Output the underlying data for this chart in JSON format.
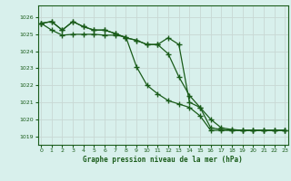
{
  "title": "Graphe pression niveau de la mer (hPa)",
  "background_color": "#d8f0ec",
  "grid_color": "#c8d8d4",
  "line_color": "#1a5c1a",
  "ylim": [
    1018.5,
    1026.7
  ],
  "xlim": [
    -0.3,
    23.3
  ],
  "yticks": [
    1019,
    1020,
    1021,
    1022,
    1023,
    1024,
    1025,
    1026
  ],
  "xticks": [
    0,
    1,
    2,
    3,
    4,
    5,
    6,
    7,
    8,
    9,
    10,
    11,
    12,
    13,
    14,
    15,
    16,
    17,
    18,
    19,
    20,
    21,
    22,
    23
  ],
  "line1": [
    1025.65,
    1025.75,
    1025.25,
    1025.75,
    1025.45,
    1025.25,
    1025.25,
    1025.05,
    1024.8,
    1024.65,
    1024.4,
    1024.4,
    1024.8,
    1024.4,
    1021.0,
    1020.7,
    1020.0,
    1019.5,
    1019.4,
    1019.35,
    1019.35,
    1019.35,
    1019.35,
    1019.35
  ],
  "line2": [
    1025.65,
    1025.75,
    1025.25,
    1025.75,
    1025.45,
    1025.25,
    1025.25,
    1025.05,
    1024.8,
    1024.65,
    1024.4,
    1024.4,
    1023.85,
    1022.5,
    1021.4,
    1020.7,
    1019.5,
    1019.4,
    1019.35,
    1019.35,
    1019.35,
    1019.35,
    1019.35,
    1019.35
  ],
  "line3": [
    1025.65,
    1025.25,
    1024.95,
    1025.0,
    1025.0,
    1025.0,
    1024.95,
    1024.95,
    1024.85,
    1023.1,
    1022.0,
    1021.5,
    1021.1,
    1020.9,
    1020.7,
    1020.2,
    1019.35,
    1019.35,
    1019.35,
    1019.35,
    1019.35,
    1019.35,
    1019.35,
    1019.35
  ]
}
